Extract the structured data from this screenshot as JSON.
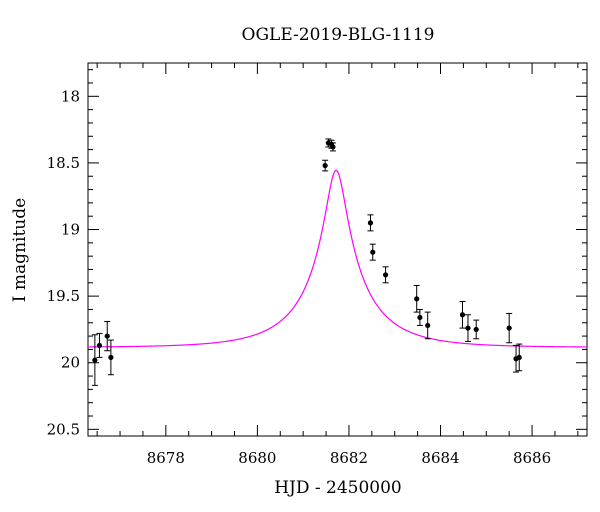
{
  "chart_data": {
    "type": "scatter",
    "title": "OGLE-2019-BLG-1119",
    "xlabel": "HJD - 2450000",
    "ylabel": "I magnitude",
    "xlim": [
      8676.3,
      8687.2
    ],
    "ylim": [
      20.55,
      17.75
    ],
    "y_inverted": true,
    "x_ticks": [
      8678,
      8680,
      8682,
      8684,
      8686
    ],
    "x_tick_labels": [
      "8678",
      "8680",
      "8682",
      "8684",
      "8686"
    ],
    "y_ticks": [
      18,
      18.5,
      19,
      19.5,
      20,
      20.5
    ],
    "y_tick_labels": [
      "18",
      "18.5",
      "19",
      "19.5",
      "20",
      "20.5"
    ],
    "grid": false,
    "colors": {
      "model": "#ff00ff",
      "points": "#000000"
    },
    "series": [
      {
        "type": "scatter_errorbar",
        "x": [
          8676.45,
          8676.55,
          8676.72,
          8676.8,
          8681.48,
          8681.55,
          8681.62,
          8681.65,
          8682.47,
          8682.52,
          8682.8,
          8683.48,
          8683.55,
          8683.72,
          8684.48,
          8684.6,
          8684.78,
          8685.5,
          8685.65,
          8685.72
        ],
        "y": [
          19.98,
          19.87,
          19.8,
          19.96,
          18.52,
          18.35,
          18.36,
          18.38,
          18.95,
          19.17,
          19.34,
          19.52,
          19.66,
          19.72,
          19.64,
          19.74,
          19.75,
          19.74,
          19.97,
          19.96
        ],
        "yerr": [
          0.19,
          0.09,
          0.11,
          0.13,
          0.04,
          0.03,
          0.03,
          0.03,
          0.06,
          0.06,
          0.06,
          0.1,
          0.06,
          0.1,
          0.1,
          0.1,
          0.07,
          0.11,
          0.1,
          0.1
        ]
      },
      {
        "type": "line",
        "model": {
          "t0": 8681.72,
          "u0": 0.15,
          "tE": 1.45,
          "baseline": 19.885,
          "blend_fraction": 0.42
        }
      }
    ]
  }
}
